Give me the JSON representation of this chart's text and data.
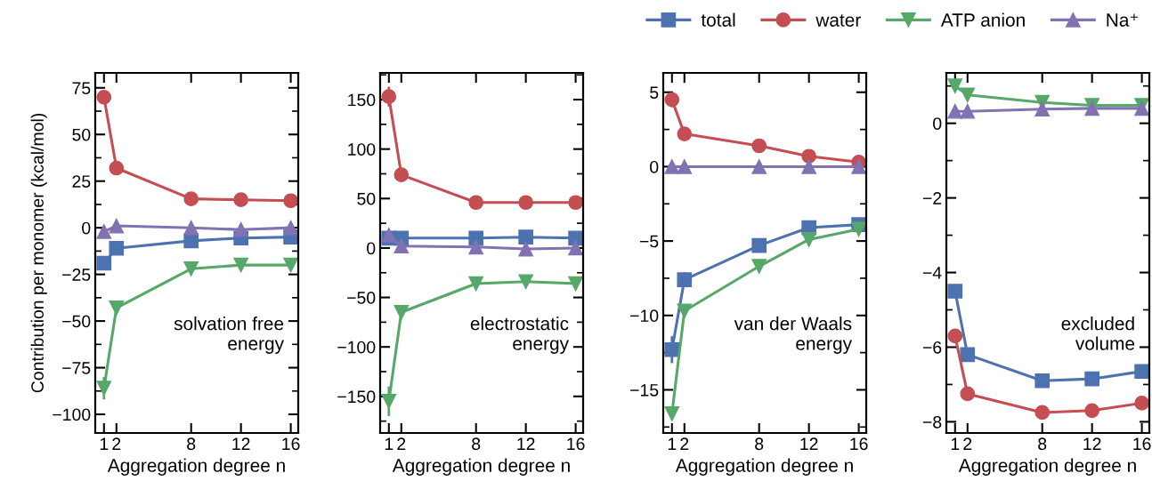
{
  "chart_data": [
    {
      "type": "line",
      "xlabel": "Aggregation degree n",
      "ylabel": "Contribution per monomer (kcal/mol)",
      "x": [
        1,
        2,
        8,
        12,
        16
      ],
      "xlim": [
        0.3,
        16.6
      ],
      "xticks": [
        1,
        2,
        8,
        12,
        16
      ],
      "ylim": [
        -110,
        83
      ],
      "yticks": [
        -100,
        -75,
        -50,
        -25,
        0,
        25,
        50,
        75
      ],
      "annotations": [
        "solvation free\nenergy"
      ],
      "legend": "top right",
      "series": [
        {
          "name": "total",
          "color": "#4c72b0",
          "marker": "square",
          "values": [
            -19,
            -11,
            -7,
            -5.5,
            -5
          ]
        },
        {
          "name": "water",
          "color": "#c44e52",
          "marker": "circle",
          "values": [
            70,
            32,
            15.5,
            15,
            14.5
          ]
        },
        {
          "name": "ATP anion",
          "color": "#55a868",
          "marker": "triangle_down",
          "values": [
            -86,
            -43,
            -22,
            -20,
            -20
          ],
          "errors": [
            6,
            null,
            null,
            null,
            null
          ]
        },
        {
          "name": "Na⁺",
          "color": "#8172b2",
          "marker": "triangle",
          "values": [
            -2,
            1,
            0,
            -1,
            0
          ]
        }
      ]
    },
    {
      "type": "line",
      "xlabel": "Aggregation degree n",
      "x": [
        1,
        2,
        8,
        12,
        16
      ],
      "xlim": [
        0.3,
        16.6
      ],
      "xticks": [
        1,
        2,
        8,
        12,
        16
      ],
      "ylim": [
        -187,
        177
      ],
      "yticks": [
        -150,
        -100,
        -50,
        0,
        50,
        100,
        150
      ],
      "annotations": [
        "electrostatic\nenergy"
      ],
      "series": [
        {
          "color": "#4c72b0",
          "marker": "square",
          "values": [
            10,
            10,
            10,
            11,
            10
          ]
        },
        {
          "color": "#c44e52",
          "marker": "circle",
          "values": [
            153,
            74,
            46,
            46,
            46
          ],
          "errors": [
            10,
            null,
            null,
            null,
            null
          ]
        },
        {
          "color": "#55a868",
          "marker": "triangle_down",
          "values": [
            -155,
            -65,
            -36,
            -34,
            -36
          ],
          "errors": [
            15,
            null,
            null,
            null,
            null
          ]
        },
        {
          "color": "#8172b2",
          "marker": "triangle",
          "values": [
            13,
            2,
            1,
            -1,
            0
          ]
        }
      ]
    },
    {
      "type": "line",
      "xlabel": "Aggregation degree n",
      "x": [
        1,
        2,
        8,
        12,
        16
      ],
      "xlim": [
        0.3,
        16.6
      ],
      "xticks": [
        1,
        2,
        8,
        12,
        16
      ],
      "ylim": [
        -17.9,
        6.3
      ],
      "yticks": [
        -15,
        -10,
        -5,
        0,
        5
      ],
      "annotations": [
        "van der Waals\nenergy"
      ],
      "series": [
        {
          "color": "#4c72b0",
          "marker": "square",
          "values": [
            -12.3,
            -7.6,
            -5.3,
            -4.1,
            -3.9
          ],
          "errors": [
            0.9,
            0.5,
            null,
            null,
            null
          ]
        },
        {
          "color": "#c44e52",
          "marker": "circle",
          "values": [
            4.5,
            2.2,
            1.4,
            0.7,
            0.3
          ],
          "errors": [
            0.5,
            null,
            null,
            null,
            null
          ]
        },
        {
          "color": "#55a868",
          "marker": "triangle_down",
          "values": [
            -16.6,
            -9.7,
            -6.7,
            -4.9,
            -4.2
          ]
        },
        {
          "color": "#8172b2",
          "marker": "triangle",
          "values": [
            0,
            0,
            0,
            0,
            0
          ]
        }
      ]
    },
    {
      "type": "line",
      "xlabel": "Aggregation degree n",
      "x": [
        1,
        2,
        8,
        12,
        16
      ],
      "xlim": [
        0.3,
        16.6
      ],
      "xticks": [
        1,
        2,
        8,
        12,
        16
      ],
      "ylim": [
        -8.3,
        1.35
      ],
      "yticks": [
        -8,
        -6,
        -4,
        -2,
        0
      ],
      "annotations": [
        "excluded\nvolume"
      ],
      "series": [
        {
          "color": "#4c72b0",
          "marker": "square",
          "values": [
            -4.5,
            -6.2,
            -6.9,
            -6.85,
            -6.65
          ]
        },
        {
          "color": "#c44e52",
          "marker": "circle",
          "values": [
            -5.7,
            -7.25,
            -7.75,
            -7.7,
            -7.5
          ]
        },
        {
          "color": "#55a868",
          "marker": "triangle_down",
          "values": [
            1.0,
            0.76,
            0.56,
            0.48,
            0.48
          ]
        },
        {
          "color": "#8172b2",
          "marker": "triangle",
          "values": [
            0.32,
            0.32,
            0.38,
            0.4,
            0.4
          ]
        }
      ]
    }
  ]
}
